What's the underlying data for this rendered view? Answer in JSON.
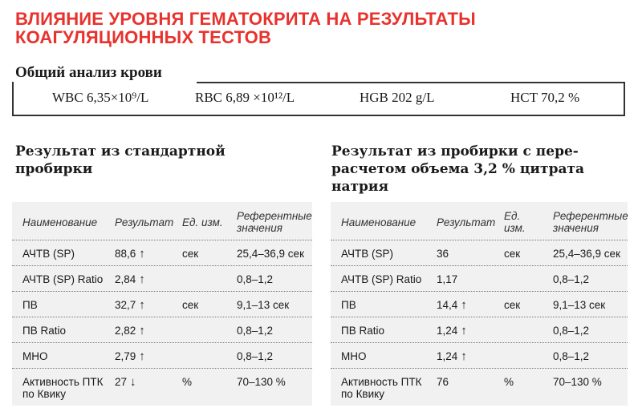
{
  "title": {
    "line1": "ВЛИЯНИЕ УРОВНЯ ГЕМАТОКРИТА НА РЕЗУЛЬТАТЫ",
    "line2": "КОАГУЛЯЦИОННЫХ ТЕСТОВ"
  },
  "cbc": {
    "heading": "Общий анализ крови",
    "wbc": "WBC 6,35×10⁹/L",
    "rbc": "RBC 6,89 ×10¹²/L",
    "hgb": "HGB 202 g/L",
    "hct": "HCT 70,2 %"
  },
  "headers": {
    "name": "Наименование",
    "result": "Результат",
    "unit_line1": "Ед. изм.",
    "unit_line2_a": "Ед.",
    "unit_line2_b": "изм.",
    "ref_line1": "Референтные",
    "ref_line2": "значения"
  },
  "standard": {
    "heading_line1": "Результат из стандартной",
    "heading_line2": "пробирки",
    "rows": [
      {
        "name1": "АЧТВ (SP)",
        "name2": "",
        "result": "88,6",
        "arrow": "↑",
        "unit": "сек",
        "ref": "25,4–36,9 сек"
      },
      {
        "name1": "АЧТВ (SP) Ratio",
        "name2": "",
        "result": "2,84",
        "arrow": "↑",
        "unit": "",
        "ref": "0,8–1,2"
      },
      {
        "name1": "ПВ",
        "name2": "",
        "result": "32,7",
        "arrow": "↑",
        "unit": "сек",
        "ref": "9,1–13 сек"
      },
      {
        "name1": "ПВ Ratio",
        "name2": "",
        "result": "2,82",
        "arrow": "↑",
        "unit": "",
        "ref": "0,8–1,2"
      },
      {
        "name1": "МНО",
        "name2": "",
        "result": "2,79",
        "arrow": "↑",
        "unit": "",
        "ref": "0,8–1,2"
      },
      {
        "name1": "Активность ПТК",
        "name2": "по Квику",
        "result": "27",
        "arrow": "↓",
        "unit": "%",
        "ref": "70–130 %"
      }
    ]
  },
  "recalc": {
    "heading_line1": "Результат из пробирки с пере-",
    "heading_line2": "расчетом объема 3,2 % цитрата",
    "heading_line3": "натрия",
    "rows": [
      {
        "name1": "АЧТВ (SP)",
        "name2": "",
        "result": "36",
        "arrow": "",
        "unit": "сек",
        "ref": "25,4–36,9 сек"
      },
      {
        "name1": "АЧТВ (SP) Ratio",
        "name2": "",
        "result": "1,17",
        "arrow": "",
        "unit": "",
        "ref": "0,8–1,2"
      },
      {
        "name1": "ПВ",
        "name2": "",
        "result": "14,4",
        "arrow": "↑",
        "unit": "сек",
        "ref": "9,1–13 сек"
      },
      {
        "name1": "ПВ Ratio",
        "name2": "",
        "result": "1,24",
        "arrow": "↑",
        "unit": "",
        "ref": "0,8–1,2"
      },
      {
        "name1": "МНО",
        "name2": "",
        "result": "1,24",
        "arrow": "↑",
        "unit": "",
        "ref": "0,8–1,2"
      },
      {
        "name1": "Активность ПТК",
        "name2": "по Квику",
        "result": "76",
        "arrow": "",
        "unit": "%",
        "ref": "70–130 %"
      }
    ]
  },
  "colors": {
    "title": "#e8322d",
    "table_bg": "#f1f1f1",
    "text": "#1a1a1a"
  }
}
